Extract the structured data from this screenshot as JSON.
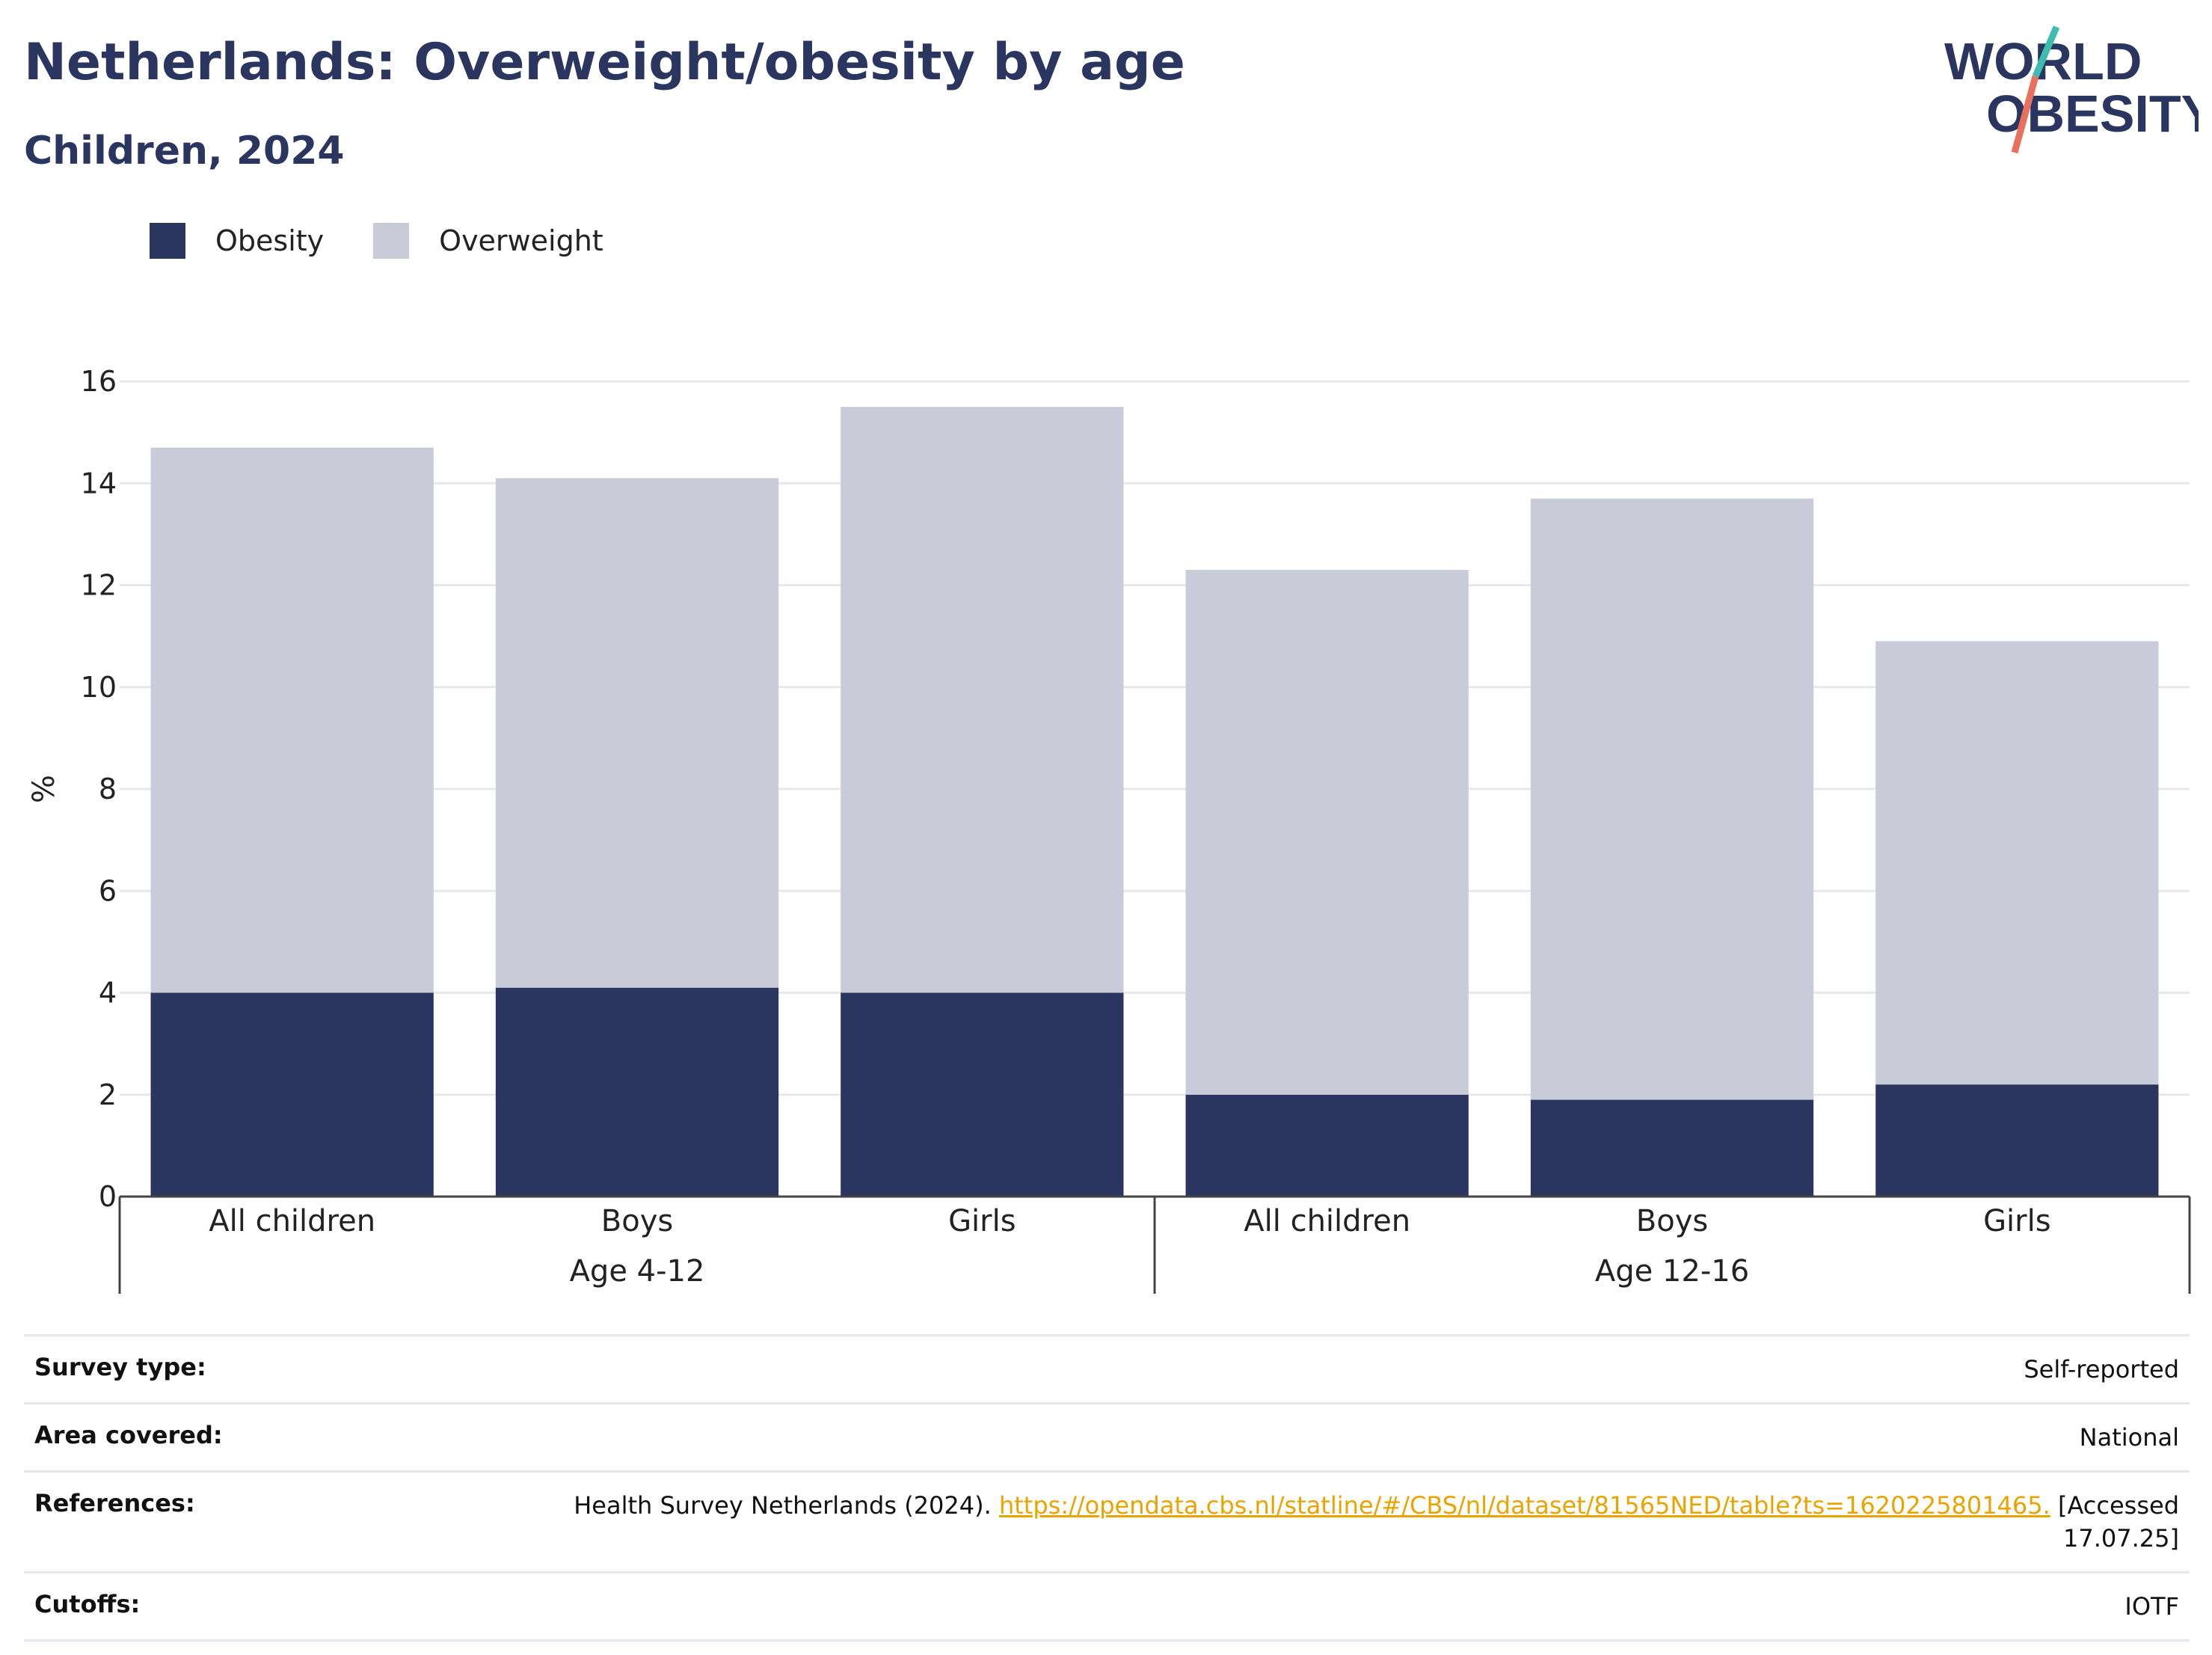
{
  "header": {
    "title": "Netherlands: Overweight/obesity by age",
    "subtitle": "Children, 2024",
    "logo_line1": "WORLD",
    "logo_line2": "OBESITY"
  },
  "colors": {
    "obesity": "#2a365f",
    "overweight": "#c9ccd8",
    "accent_teal": "#3fbcb0",
    "accent_coral": "#e8705e",
    "link": "#e9a400"
  },
  "chart_data": {
    "type": "bar",
    "stacked": true,
    "title": "Netherlands: Overweight/obesity by age",
    "subtitle": "Children, 2024",
    "ylabel": "%",
    "ylim": [
      0,
      16
    ],
    "yticks": [
      0,
      2,
      4,
      6,
      8,
      10,
      12,
      14,
      16
    ],
    "grid": true,
    "legend_position": "top-left",
    "categories": [
      "All children",
      "Boys",
      "Girls",
      "All children",
      "Boys",
      "Girls"
    ],
    "groups": [
      {
        "label": "Age 4-12",
        "count": 3
      },
      {
        "label": "Age 12-16",
        "count": 3
      }
    ],
    "series": [
      {
        "name": "Obesity",
        "values": [
          4.0,
          4.1,
          4.0,
          2.0,
          1.9,
          2.2
        ]
      },
      {
        "name": "Overweight",
        "values": [
          10.7,
          10.0,
          11.5,
          10.3,
          11.8,
          8.7
        ]
      }
    ]
  },
  "meta": {
    "survey_type_label": "Survey type:",
    "survey_type_value": "Self-reported",
    "area_label": "Area covered:",
    "area_value": "National",
    "references_label": "References:",
    "references_text_pre": "Health Survey Netherlands (2024). ",
    "references_link": "https://opendata.cbs.nl/statline/#/CBS/nl/dataset/81565NED/table?ts=1620225801465.",
    "references_text_post": " [Accessed 17.07.25]",
    "cutoffs_label": "Cutoffs:",
    "cutoffs_value": "IOTF"
  }
}
